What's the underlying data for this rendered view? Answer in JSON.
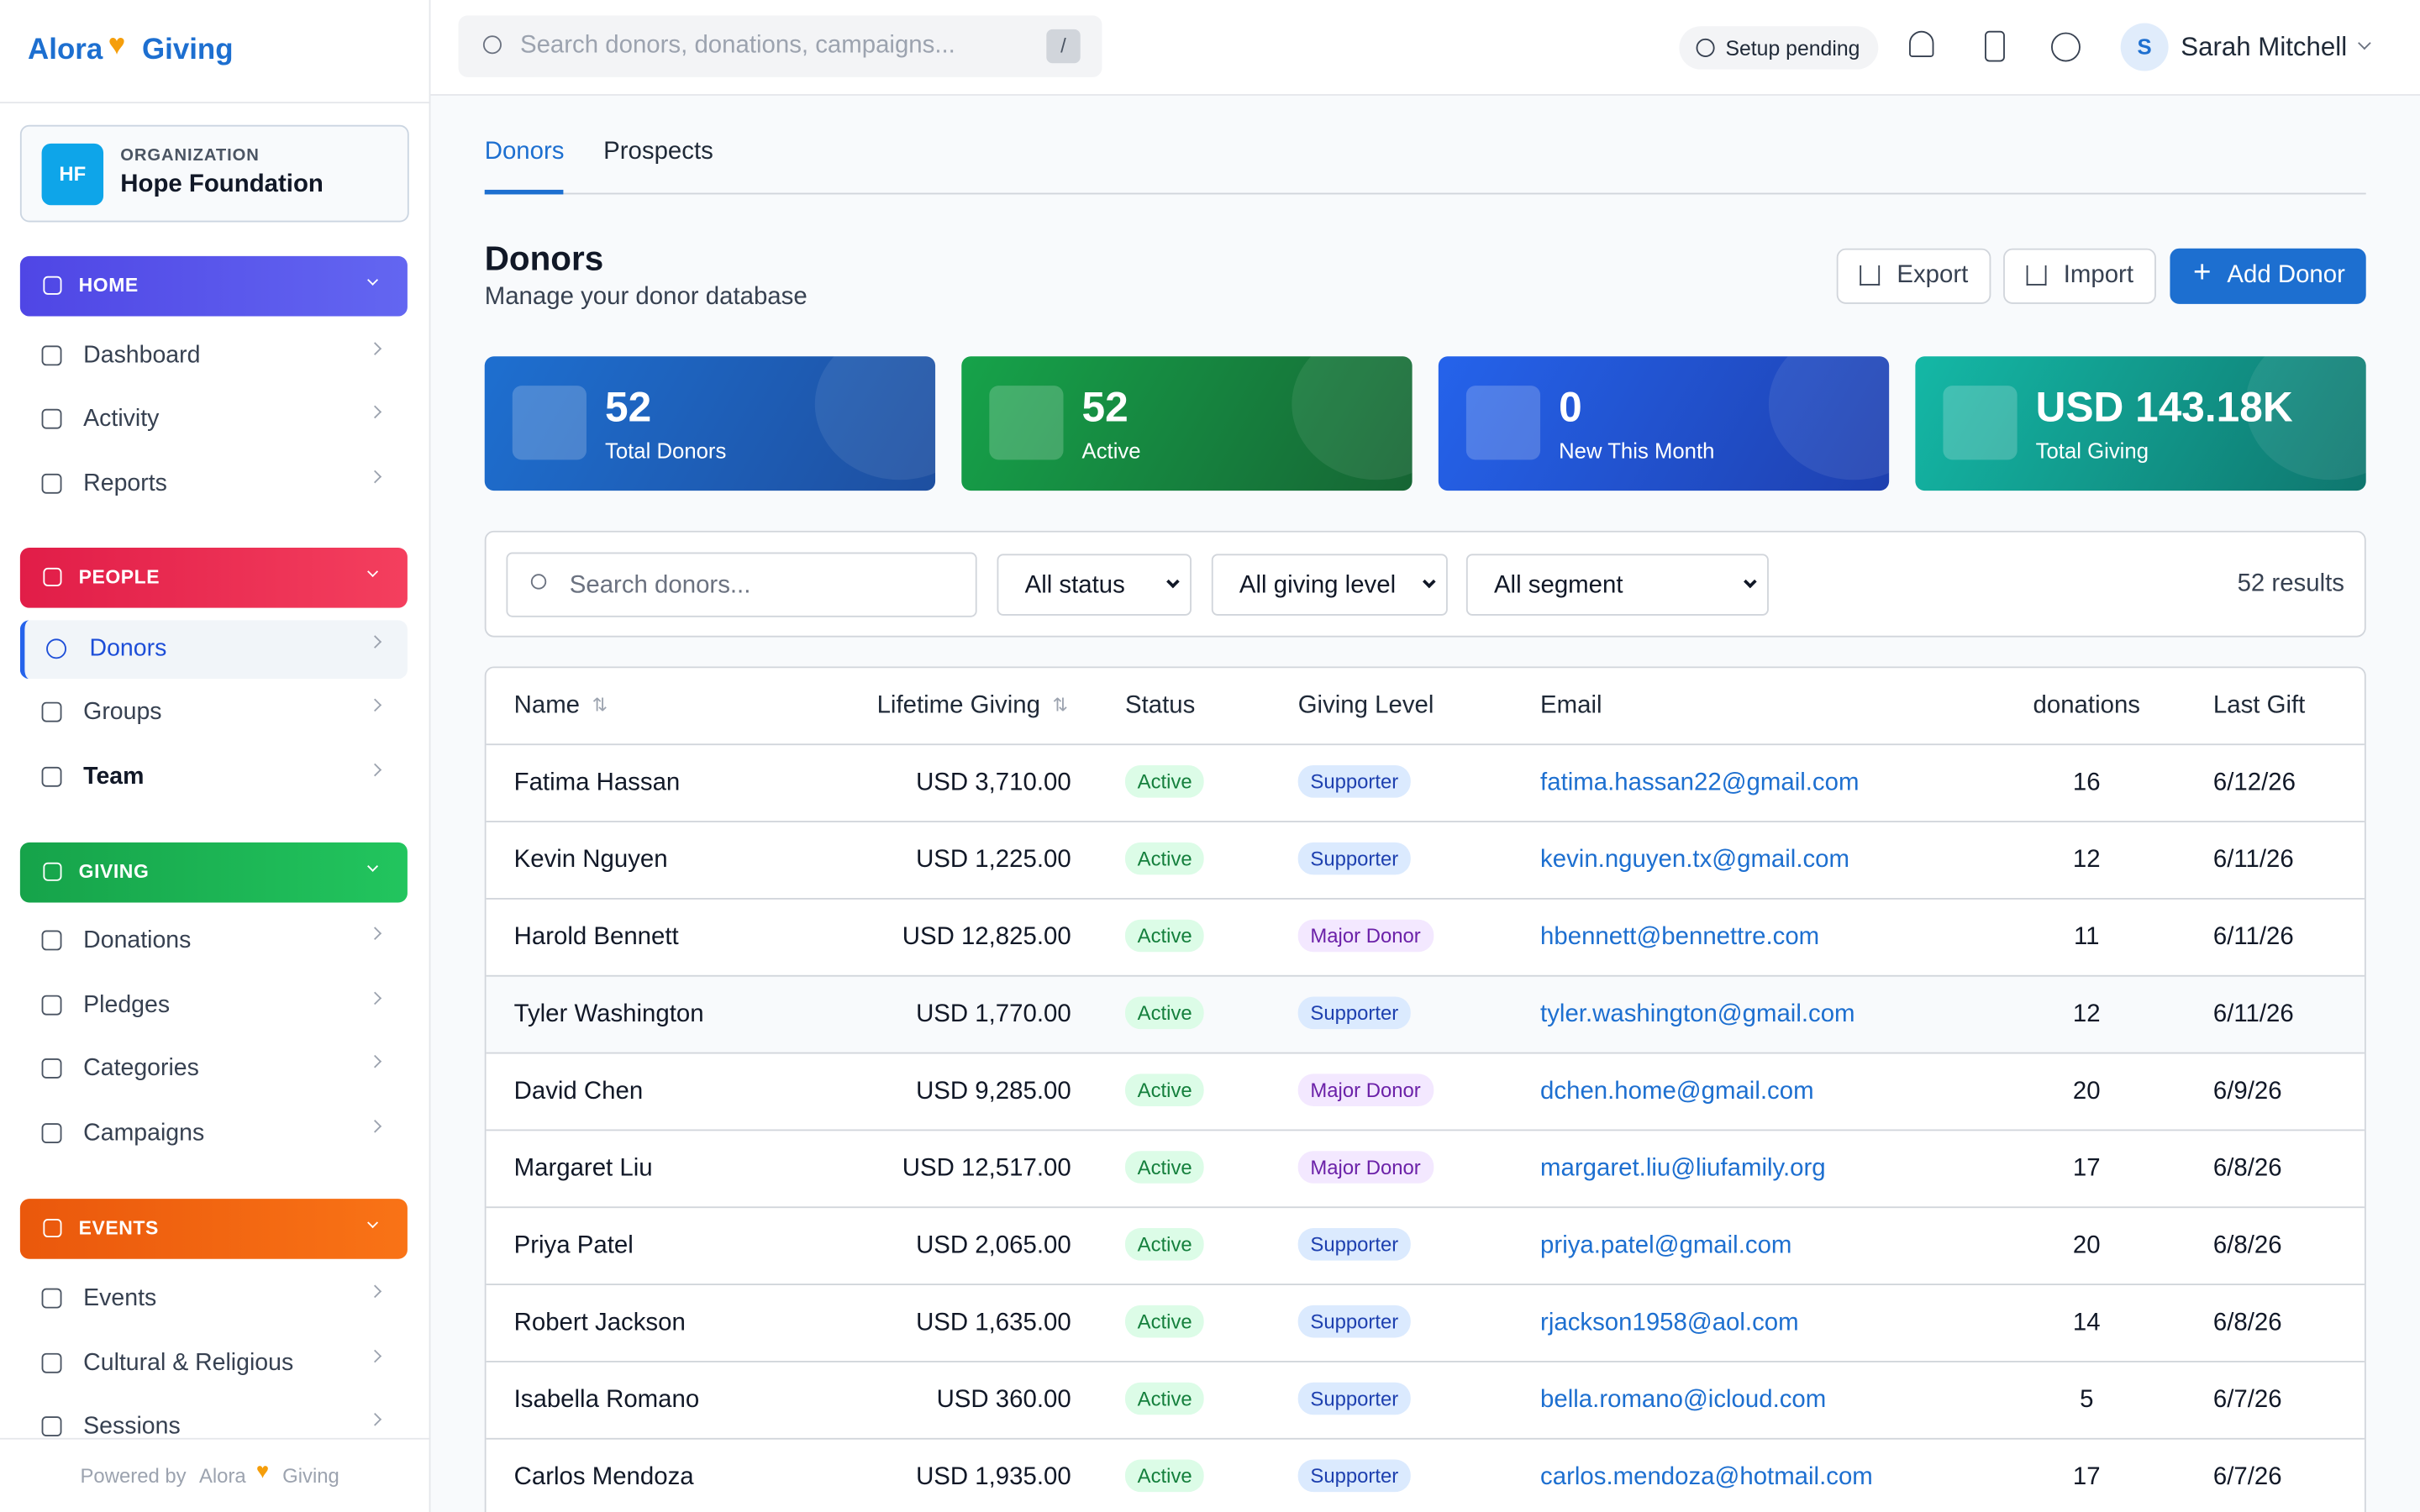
{
  "brand": {
    "left": "Alora",
    "right": "Giving"
  },
  "org": {
    "label": "ORGANIZATION",
    "initials": "HF",
    "name": "Hope Foundation"
  },
  "nav": [
    {
      "title": "HOME",
      "items": [
        "Dashboard",
        "Activity",
        "Reports"
      ]
    },
    {
      "title": "PEOPLE",
      "items": [
        "Donors",
        "Groups",
        "Team"
      ]
    },
    {
      "title": "GIVING",
      "items": [
        "Donations",
        "Pledges",
        "Categories",
        "Campaigns"
      ]
    },
    {
      "title": "EVENTS",
      "items": [
        "Events",
        "Cultural & Religious",
        "Sessions"
      ]
    }
  ],
  "footer": {
    "prefix": "Powered by",
    "left": "Alora",
    "right": "Giving"
  },
  "topbar": {
    "search": "Search donors, donations, campaigns...",
    "shortcut": "/",
    "status": "Setup pending",
    "avatar": "S",
    "user": "Sarah Mitchell"
  },
  "tabs": [
    "Donors",
    "Prospects"
  ],
  "header": {
    "title": "Donors",
    "subtitle": "Manage your donor database",
    "actions": [
      "Export",
      "Import",
      "Add Donor"
    ]
  },
  "stats": [
    {
      "value": "52",
      "label": "Total Donors"
    },
    {
      "value": "52",
      "label": "Active"
    },
    {
      "value": "0",
      "label": "New This Month"
    },
    {
      "value": "USD 143.18K",
      "label": "Total Giving"
    }
  ],
  "filters": {
    "search": "Search donors...",
    "selects": [
      "All status",
      "All giving level",
      "All segment"
    ],
    "results": "52 results"
  },
  "table": {
    "columns": [
      "Name",
      "Lifetime Giving",
      "Status",
      "Giving Level",
      "Email",
      "donations",
      "Last Gift"
    ],
    "rows": [
      [
        "Fatima Hassan",
        "USD 3,710.00",
        "Active",
        "Supporter",
        "fatima.hassan22@gmail.com",
        "16",
        "6/12/26"
      ],
      [
        "Kevin Nguyen",
        "USD 1,225.00",
        "Active",
        "Supporter",
        "kevin.nguyen.tx@gmail.com",
        "12",
        "6/11/26"
      ],
      [
        "Harold Bennett",
        "USD 12,825.00",
        "Active",
        "Major Donor",
        "hbennett@bennettre.com",
        "11",
        "6/11/26"
      ],
      [
        "Tyler Washington",
        "USD 1,770.00",
        "Active",
        "Supporter",
        "tyler.washington@gmail.com",
        "12",
        "6/11/26"
      ],
      [
        "David Chen",
        "USD 9,285.00",
        "Active",
        "Major Donor",
        "dchen.home@gmail.com",
        "20",
        "6/9/26"
      ],
      [
        "Margaret Liu",
        "USD 12,517.00",
        "Active",
        "Major Donor",
        "margaret.liu@liufamily.org",
        "17",
        "6/8/26"
      ],
      [
        "Priya Patel",
        "USD 2,065.00",
        "Active",
        "Supporter",
        "priya.patel@gmail.com",
        "20",
        "6/8/26"
      ],
      [
        "Robert Jackson",
        "USD 1,635.00",
        "Active",
        "Supporter",
        "rjackson1958@aol.com",
        "14",
        "6/8/26"
      ],
      [
        "Isabella Romano",
        "USD 360.00",
        "Active",
        "Supporter",
        "bella.romano@icloud.com",
        "5",
        "6/7/26"
      ],
      [
        "Carlos Mendoza",
        "USD 1,935.00",
        "Active",
        "Supporter",
        "carlos.mendoza@hotmail.com",
        "17",
        "6/7/26"
      ]
    ]
  }
}
